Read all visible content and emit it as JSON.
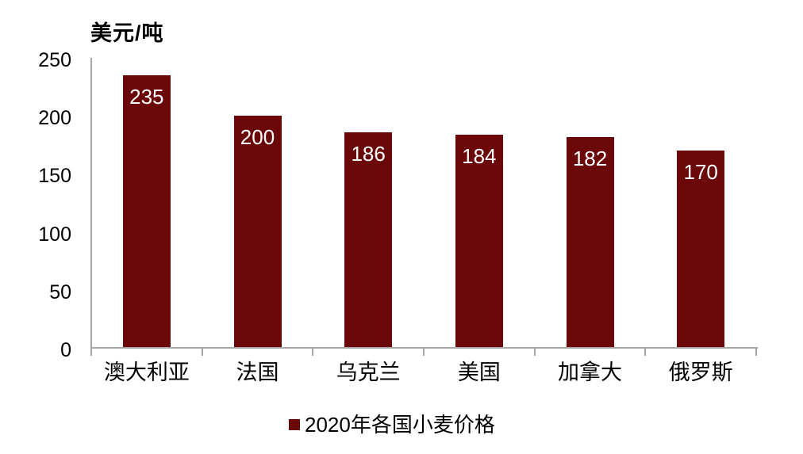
{
  "chart_data": {
    "type": "bar",
    "title": "",
    "unit_label": "美元/吨",
    "categories": [
      "澳大利亚",
      "法国",
      "乌克兰",
      "美国",
      "加拿大",
      "俄罗斯"
    ],
    "values": [
      235,
      200,
      186,
      184,
      182,
      170
    ],
    "legend_label": "2020年各国小麦价格",
    "legend_position": "bottom-center",
    "xlabel": "",
    "ylabel": "美元/吨",
    "ylim": [
      0,
      250
    ],
    "yticks": [
      0,
      50,
      100,
      150,
      200,
      250
    ],
    "grid": false,
    "bar_color": "#6B0809",
    "axis_color": "#A6A6A6",
    "value_label_color": "#FFFFFF",
    "text_color": "#000000",
    "background_color": "#FFFFFF"
  }
}
